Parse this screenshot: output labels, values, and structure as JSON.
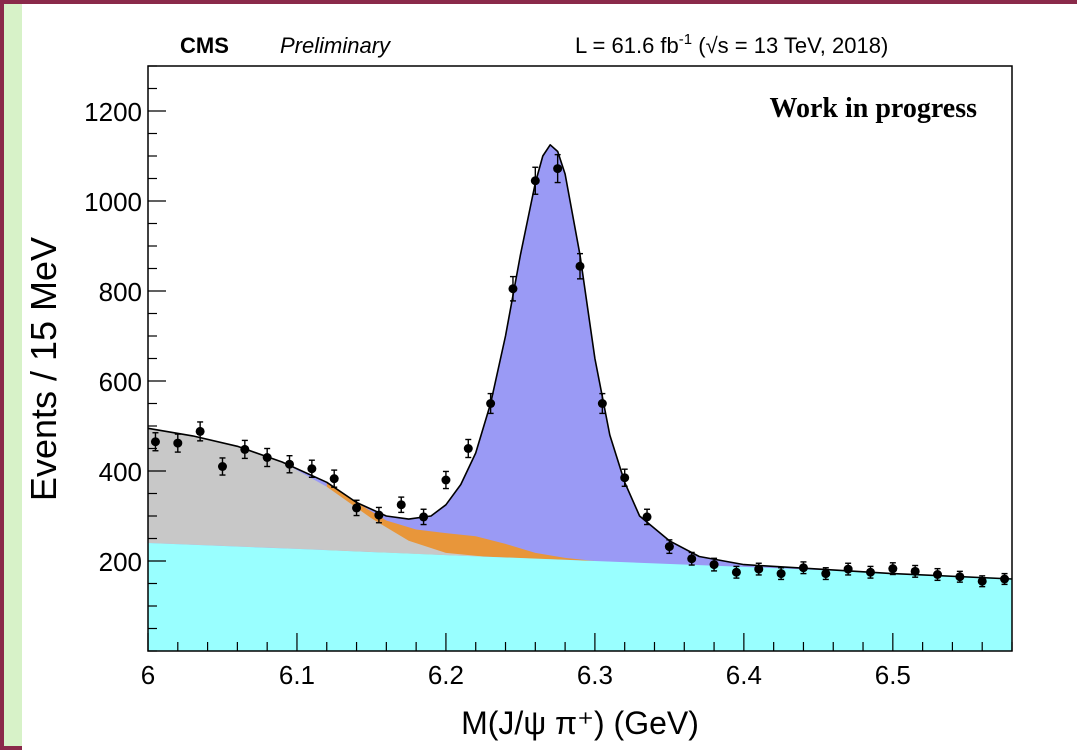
{
  "chart_data": {
    "type": "area",
    "experiment": "CMS",
    "status": "Preliminary",
    "lumi_label": "L = 61.6 fb",
    "lumi_exponent": "-1",
    "lumi_energy": " (√s = 13 TeV, 2018)",
    "annotation": "Work in progress",
    "xlabel": "M(J/ψ π⁺) (GeV)",
    "ylabel": "Events / 15 MeV",
    "xlim": [
      6.0,
      6.58
    ],
    "ylim": [
      0,
      1300
    ],
    "x_ticks": [
      6.0,
      6.1,
      6.2,
      6.3,
      6.4,
      6.5
    ],
    "x_tick_labels": [
      "6",
      "6.1",
      "6.2",
      "6.3",
      "6.4",
      "6.5"
    ],
    "y_ticks": [
      200,
      400,
      600,
      800,
      1000,
      1200
    ],
    "y_tick_labels": [
      "200",
      "400",
      "600",
      "800",
      "1000",
      "1200"
    ],
    "grid": false,
    "colors": {
      "signal": "#9a9af5",
      "partial_reco": "#e8963a",
      "peaking_bkg": "#c8c8c8",
      "combinatorial": "#99ffff",
      "fit_line": "#000000",
      "data_points": "#000000"
    },
    "components": {
      "combinatorial": {
        "x": [
          6.0,
          6.1,
          6.2,
          6.3,
          6.4,
          6.5,
          6.58
        ],
        "y": [
          240,
          227,
          213,
          200,
          187,
          173,
          162
        ]
      },
      "peaking_bkg": {
        "x": [
          6.0,
          6.03,
          6.06,
          6.09,
          6.12,
          6.15,
          6.175,
          6.2,
          6.225
        ],
        "y": [
          495,
          478,
          455,
          420,
          365,
          295,
          245,
          218,
          210
        ]
      },
      "partial_reco": {
        "x": [
          6.12,
          6.14,
          6.16,
          6.18,
          6.2,
          6.22,
          6.24,
          6.26,
          6.28,
          6.3
        ],
        "y": [
          375,
          330,
          290,
          270,
          262,
          255,
          238,
          218,
          207,
          200
        ]
      },
      "total_fit": {
        "x": [
          6.0,
          6.03,
          6.06,
          6.09,
          6.12,
          6.14,
          6.16,
          6.175,
          6.19,
          6.2,
          6.21,
          6.22,
          6.23,
          6.24,
          6.25,
          6.26,
          6.265,
          6.27,
          6.275,
          6.28,
          6.29,
          6.3,
          6.31,
          6.32,
          6.33,
          6.35,
          6.37,
          6.4,
          6.45,
          6.5,
          6.58
        ],
        "y": [
          495,
          478,
          455,
          420,
          375,
          330,
          300,
          293,
          300,
          325,
          370,
          440,
          550,
          700,
          880,
          1040,
          1100,
          1125,
          1110,
          1060,
          880,
          650,
          480,
          375,
          300,
          245,
          210,
          192,
          182,
          172,
          160
        ]
      }
    },
    "data_points": {
      "x": [
        6.005,
        6.02,
        6.035,
        6.05,
        6.065,
        6.08,
        6.095,
        6.11,
        6.125,
        6.14,
        6.155,
        6.17,
        6.185,
        6.2,
        6.215,
        6.23,
        6.245,
        6.26,
        6.275,
        6.29,
        6.305,
        6.32,
        6.335,
        6.35,
        6.365,
        6.38,
        6.395,
        6.41,
        6.425,
        6.44,
        6.455,
        6.47,
        6.485,
        6.5,
        6.515,
        6.53,
        6.545,
        6.56,
        6.575
      ],
      "y": [
        465,
        462,
        488,
        410,
        448,
        430,
        415,
        405,
        383,
        318,
        302,
        325,
        298,
        380,
        450,
        550,
        805,
        1045,
        1072,
        855,
        550,
        385,
        298,
        232,
        205,
        192,
        175,
        182,
        172,
        185,
        172,
        182,
        175,
        183,
        177,
        170,
        165,
        155,
        160
      ],
      "err": [
        20,
        20,
        21,
        19,
        20,
        20,
        19,
        19,
        19,
        17,
        17,
        17,
        17,
        19,
        20,
        22,
        27,
        30,
        31,
        28,
        22,
        19,
        17,
        15,
        14,
        14,
        13,
        13,
        13,
        13,
        13,
        13,
        13,
        13,
        13,
        13,
        12,
        12,
        12
      ]
    }
  }
}
